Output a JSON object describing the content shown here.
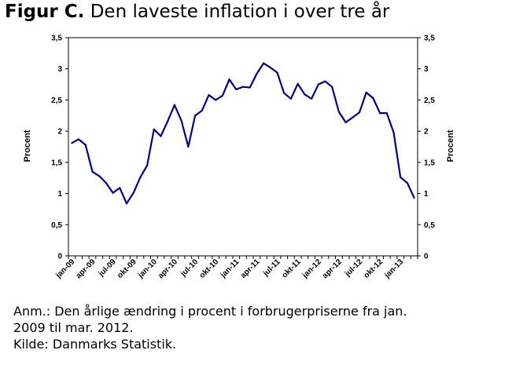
{
  "header": {
    "title_prefix": "Figur C.",
    "title_text": " Den laveste inflation i over tre år"
  },
  "notes": {
    "line1": "Anm.: Den årlige ændring i procent i forbrugerpriserne fra jan.",
    "line2": "2009 til mar. 2012.",
    "line3": "Kilde: Danmarks Statistik."
  },
  "chart_data": {
    "type": "line",
    "title": "Den laveste inflation i over tre år",
    "ylabel": "Procent",
    "ylabel_right": "Procent",
    "ylim": [
      0,
      3.5
    ],
    "yticks": [
      "0",
      "0,5",
      "1",
      "1,5",
      "2",
      "2,5",
      "3",
      "3,5"
    ],
    "xtick_labels": [
      "jan-09",
      "apr-09",
      "jul-09",
      "okt-09",
      "jan-10",
      "apr-10",
      "jul-10",
      "okt-10",
      "jan-11",
      "apr-11",
      "jul-11",
      "okt-11",
      "jan-12",
      "apr-12",
      "jul-12",
      "okt-12",
      "jan-13"
    ],
    "grid": false,
    "legend": "none",
    "color": "#000080",
    "series": [
      {
        "values": [
          1.81,
          1.87,
          1.78,
          1.35,
          1.28,
          1.17,
          1.01,
          1.09,
          0.84,
          1.01,
          1.26,
          1.45,
          2.03,
          1.92,
          2.16,
          2.42,
          2.17,
          1.75,
          2.25,
          2.33,
          2.58,
          2.5,
          2.57,
          2.83,
          2.67,
          2.71,
          2.7,
          2.92,
          3.09,
          3.02,
          2.94,
          2.61,
          2.52,
          2.76,
          2.59,
          2.52,
          2.75,
          2.8,
          2.71,
          2.31,
          2.14,
          2.22,
          2.3,
          2.62,
          2.53,
          2.29,
          2.29,
          1.98,
          1.26,
          1.17,
          0.93
        ]
      }
    ]
  }
}
